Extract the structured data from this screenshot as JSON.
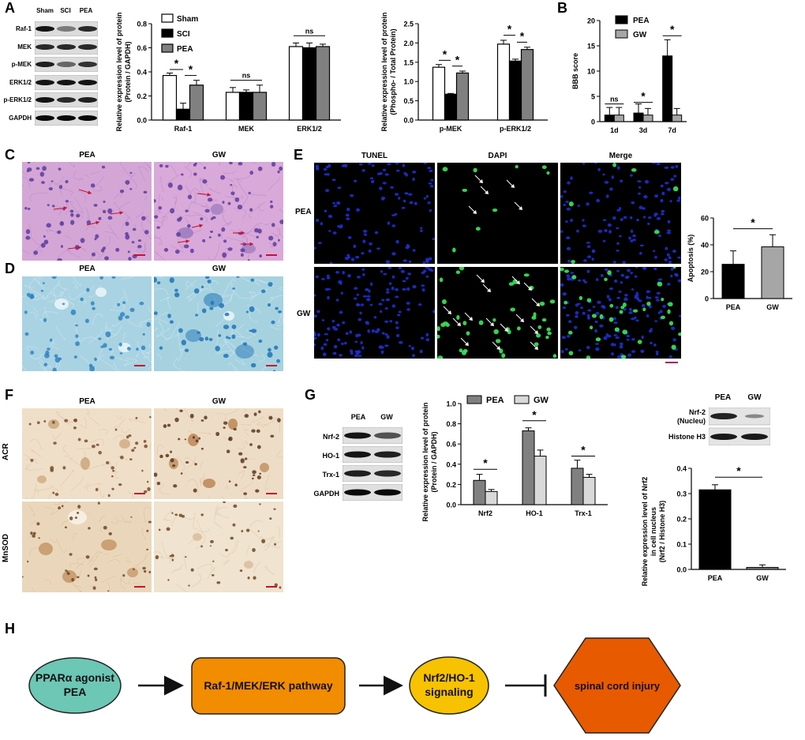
{
  "panelA": {
    "letter": "A",
    "blot_lanes": [
      "Sham",
      "SCI",
      "PEA"
    ],
    "blot_rows": [
      "Raf-1",
      "MEK",
      "p-MEK",
      "ERK1/2",
      "p-ERK1/2",
      "GAPDH"
    ]
  },
  "chartA1": {
    "type": "bar",
    "ylabel_line1": "Relative expression level of protein",
    "ylabel_line2": "(Protein / GAPDH)",
    "categories": [
      "Raf-1",
      "MEK",
      "ERK1/2"
    ],
    "series": [
      {
        "name": "Sham",
        "values": [
          0.37,
          0.23,
          0.61
        ],
        "errors": [
          0.02,
          0.04,
          0.03
        ],
        "color": "#ffffff"
      },
      {
        "name": "SCI",
        "values": [
          0.09,
          0.23,
          0.6
        ],
        "errors": [
          0.05,
          0.02,
          0.04
        ],
        "color": "#000000"
      },
      {
        "name": "PEA",
        "values": [
          0.29,
          0.23,
          0.61
        ],
        "errors": [
          0.04,
          0.06,
          0.02
        ],
        "color": "#808080"
      }
    ],
    "ylim": [
      0,
      0.8
    ],
    "yticks": [
      "0.0",
      "0.2",
      "0.4",
      "0.6",
      "0.8"
    ],
    "annotations": [
      "*",
      "*",
      "ns",
      "ns"
    ]
  },
  "chartA2": {
    "type": "bar",
    "ylabel_line1": "Relative expression level of protein",
    "ylabel_line2": "(Phospho- / Total Protein)",
    "categories": [
      "p-MEK",
      "p-ERK1/2"
    ],
    "series": [
      {
        "name": "Sham",
        "values": [
          1.37,
          1.97
        ],
        "errors": [
          0.07,
          0.1
        ]
      },
      {
        "name": "SCI",
        "values": [
          0.67,
          1.53
        ],
        "errors": [
          0.02,
          0.05
        ]
      },
      {
        "name": "PEA",
        "values": [
          1.22,
          1.83
        ],
        "errors": [
          0.05,
          0.06
        ]
      }
    ],
    "ylim": [
      0,
      2.5
    ],
    "yticks": [
      "0.0",
      "0.5",
      "1.0",
      "1.5",
      "2.0",
      "2.5"
    ],
    "annotations": [
      "*",
      "*",
      "*",
      "*"
    ]
  },
  "chartB": {
    "letter": "B",
    "type": "bar",
    "ylabel": "BBB score",
    "categories": [
      "1d",
      "3d",
      "7d"
    ],
    "series": [
      {
        "name": "PEA",
        "values": [
          1.3,
          1.7,
          13.0
        ],
        "errors": [
          1.5,
          1.8,
          3.2
        ],
        "color": "#000000"
      },
      {
        "name": "GW",
        "values": [
          1.3,
          1.3,
          1.3
        ],
        "errors": [
          1.5,
          1.3,
          1.3
        ],
        "color": "#a6a6a6"
      }
    ],
    "ylim": [
      0,
      20
    ],
    "yticks": [
      "0",
      "5",
      "10",
      "15",
      "20"
    ],
    "annotations": [
      "ns",
      "*",
      "*"
    ]
  },
  "panelC": {
    "letter": "C",
    "labels": [
      "PEA",
      "GW"
    ]
  },
  "panelD": {
    "letter": "D",
    "labels": [
      "PEA",
      "GW"
    ]
  },
  "panelE": {
    "letter": "E",
    "columns": [
      "TUNEL",
      "DAPI",
      "Merge"
    ],
    "rows": [
      "PEA",
      "GW"
    ]
  },
  "chartE": {
    "type": "bar",
    "ylabel": "Apoptosis (%)",
    "categories": [
      "PEA",
      "GW"
    ],
    "values": [
      25.5,
      38.5
    ],
    "errors": [
      10,
      9
    ],
    "colors": [
      "#000000",
      "#a6a6a6"
    ],
    "ylim": [
      0,
      60
    ],
    "yticks": [
      "0",
      "20",
      "40",
      "60"
    ],
    "annotations": [
      "*"
    ]
  },
  "panelF": {
    "letter": "F",
    "columns": [
      "PEA",
      "GW"
    ],
    "rows": [
      "ACR",
      "MnSOD"
    ]
  },
  "panelG": {
    "letter": "G",
    "blot_lanes": [
      "PEA",
      "GW"
    ],
    "blot_rows": [
      "Nrf-2",
      "HO-1",
      "Trx-1",
      "GAPDH"
    ],
    "nuc_lanes": [
      "PEA",
      "GW"
    ],
    "nuc_row1_line1": "Nrf-2",
    "nuc_row1_line2": "(Nucleu)",
    "nuc_row2": "Histone H3"
  },
  "chartG1": {
    "type": "bar",
    "ylabel_line1": "Relative expression level of protein",
    "ylabel_line2": "(Protein / GAPDH)",
    "categories": [
      "Nrf2",
      "HO-1",
      "Trx-1"
    ],
    "series": [
      {
        "name": "PEA",
        "values": [
          0.24,
          0.73,
          0.36
        ],
        "errors": [
          0.06,
          0.03,
          0.08
        ],
        "color": "#808080"
      },
      {
        "name": "GW",
        "values": [
          0.13,
          0.48,
          0.27
        ],
        "errors": [
          0.02,
          0.06,
          0.03
        ],
        "color": "#d9d9d9"
      }
    ],
    "ylim": [
      0,
      1.0
    ],
    "yticks": [
      "0.0",
      "0.2",
      "0.4",
      "0.6",
      "0.8",
      "1.0"
    ],
    "annotations": [
      "*",
      "*",
      "*"
    ]
  },
  "chartG2": {
    "type": "bar",
    "ylabel_line1": "Relative expression level of Nrf2",
    "ylabel_line2": "in cell nucleus",
    "ylabel_line3": "(Nrf2 / Histone H3)",
    "categories": [
      "PEA",
      "GW"
    ],
    "values": [
      0.315,
      0.008
    ],
    "errors": [
      0.02,
      0.01
    ],
    "colors": [
      "#000000",
      "#808080"
    ],
    "ylim": [
      0,
      0.4
    ],
    "yticks": [
      "0.0",
      "0.1",
      "0.2",
      "0.3",
      "0.4"
    ],
    "annotations": [
      "*"
    ]
  },
  "panelH": {
    "letter": "H",
    "node1_line1": "PPARα agonist",
    "node1_line2": "PEA",
    "node2": "Raf-1/MEK/ERK pathway",
    "node3_line1": "Nrf2/HO-1",
    "node3_line2": "signaling",
    "node4": "spinal cord injury",
    "colors": {
      "node1": "#6cc7b5",
      "node2": "#f28c00",
      "node3": "#f7c200",
      "node4": "#e85a00"
    }
  }
}
